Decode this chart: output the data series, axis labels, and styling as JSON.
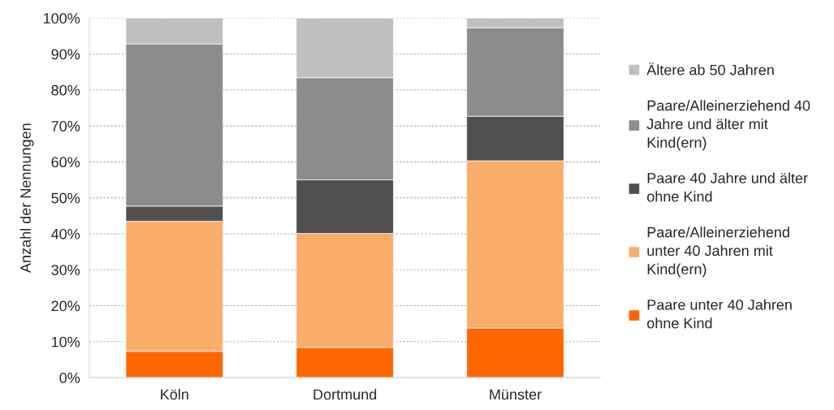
{
  "chart_data": {
    "type": "bar",
    "stacked": true,
    "ylabel": "Anzahl der Nennungen",
    "categories": [
      "Köln",
      "Dortmund",
      "Münster"
    ],
    "series": [
      {
        "name": "Paare unter 40 Jahren ohne Kind",
        "color": "#ff6600",
        "values": [
          7.3,
          8.4,
          13.8
        ]
      },
      {
        "name": "Paare/Alleinerziehend unter 40 Jahren mit Kind(ern)",
        "color": "#fbad6a",
        "values": [
          36.2,
          31.7,
          46.5
        ]
      },
      {
        "name": "Paare 40 Jahre und älter ohne Kind",
        "color": "#505050",
        "values": [
          4.2,
          14.9,
          12.4
        ]
      },
      {
        "name": "Paare/Alleinerziehend 40 Jahre und älter mit Kind(ern)",
        "color": "#8c8c8c",
        "values": [
          45.1,
          28.4,
          24.6
        ]
      },
      {
        "name": "Ältere ab 50 Jahren",
        "color": "#bfbfbf",
        "values": [
          7.2,
          16.6,
          2.7
        ]
      }
    ],
    "ylim": [
      0,
      100
    ],
    "yticks": [
      {
        "value": 0,
        "label": "0%"
      },
      {
        "value": 10,
        "label": "10%"
      },
      {
        "value": 20,
        "label": "20%"
      },
      {
        "value": 30,
        "label": "30%"
      },
      {
        "value": 40,
        "label": "40%"
      },
      {
        "value": 50,
        "label": "50%"
      },
      {
        "value": 60,
        "label": "60%"
      },
      {
        "value": 70,
        "label": "70%"
      },
      {
        "value": 80,
        "label": "80%"
      },
      {
        "value": 90,
        "label": "90%"
      },
      {
        "value": 100,
        "label": "100%"
      }
    ],
    "grid": "y",
    "legend": "right"
  }
}
